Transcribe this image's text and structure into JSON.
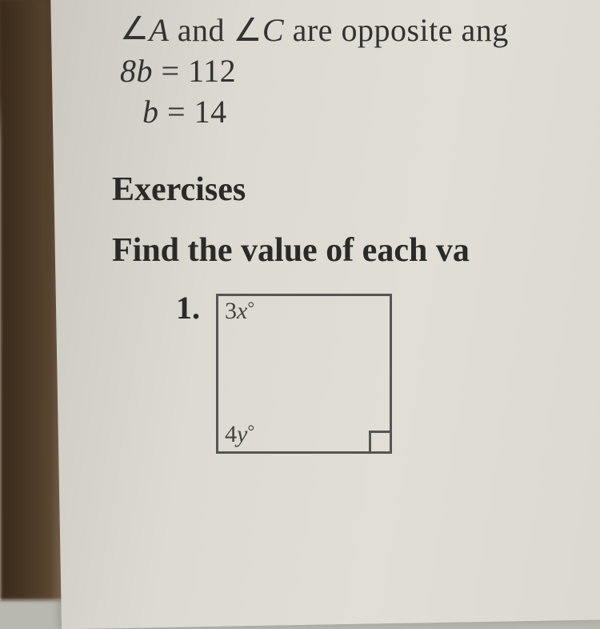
{
  "line1_prefix": "∠",
  "line1_a": "A",
  "line1_mid": " and ∠",
  "line1_c": "C",
  "line1_end": " are opposite ang",
  "eq1_lhs": "8b",
  "eq1_eq": " = ",
  "eq1_rhs": "112",
  "eq2_lhs": "b",
  "eq2_eq": " = ",
  "eq2_rhs": "14",
  "exercises": "Exercises",
  "find": "Find the value of each va",
  "pnum": "1.",
  "label_tl_a": "3",
  "label_tl_b": "x",
  "label_bl_a": "4",
  "label_bl_b": "y",
  "deg": "°",
  "style": {
    "body_font": "Times New Roman",
    "text_color": "#2a2a28",
    "border_color": "#555555",
    "square_w": 220,
    "square_h": 200,
    "square_border": 3,
    "rtang_size": 26,
    "mathline_size": 40,
    "heading_size": 42,
    "label_size": 30
  }
}
